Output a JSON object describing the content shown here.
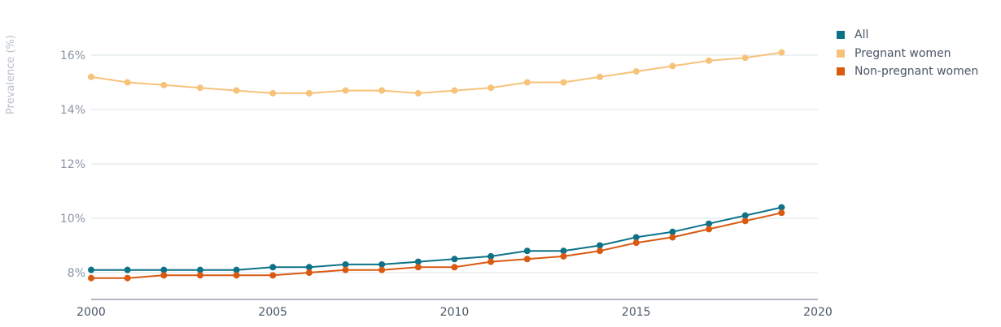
{
  "chart_data": {
    "type": "line",
    "ylabel": "Prevalence (%)",
    "xlabel": "",
    "xlim": [
      2000,
      2020
    ],
    "ylim": [
      7,
      17
    ],
    "xticks": [
      2000,
      2005,
      2010,
      2015,
      2020
    ],
    "yticks": [
      8,
      10,
      12,
      14,
      16
    ],
    "ytick_labels": [
      "8%",
      "10%",
      "12%",
      "14%",
      "16%"
    ],
    "grid": "horizontal",
    "legend_position": "right",
    "x": [
      2000,
      2001,
      2002,
      2003,
      2004,
      2005,
      2006,
      2007,
      2008,
      2009,
      2010,
      2011,
      2012,
      2013,
      2014,
      2015,
      2016,
      2017,
      2018,
      2019
    ],
    "series": [
      {
        "name": "All",
        "color": "#0d7287",
        "values": [
          8.1,
          8.1,
          8.1,
          8.1,
          8.1,
          8.2,
          8.2,
          8.3,
          8.3,
          8.4,
          8.5,
          8.6,
          8.8,
          8.8,
          9.0,
          9.3,
          9.5,
          9.8,
          10.1,
          10.4
        ]
      },
      {
        "name": "Pregnant women",
        "color": "#f7c27a",
        "values": [
          15.2,
          15.0,
          14.9,
          14.8,
          14.7,
          14.6,
          14.6,
          14.7,
          14.7,
          14.6,
          14.7,
          14.8,
          15.0,
          15.0,
          15.2,
          15.4,
          15.6,
          15.8,
          15.9,
          16.1
        ]
      },
      {
        "name": "Non-pregnant women",
        "color": "#d95a10",
        "values": [
          7.8,
          7.8,
          7.9,
          7.9,
          7.9,
          7.9,
          8.0,
          8.1,
          8.1,
          8.2,
          8.2,
          8.4,
          8.5,
          8.6,
          8.8,
          9.1,
          9.3,
          9.6,
          9.9,
          10.2
        ]
      }
    ]
  }
}
